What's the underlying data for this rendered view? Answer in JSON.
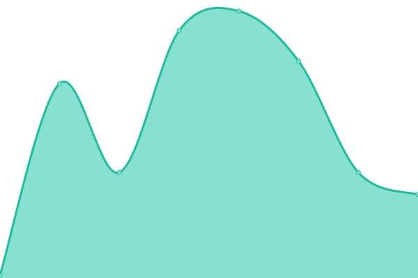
{
  "chart_data": {
    "type": "area",
    "x": [
      1,
      2,
      3,
      4,
      5,
      6,
      7,
      8
    ],
    "values": [
      1,
      70,
      38,
      89,
      96,
      78,
      38,
      30
    ],
    "ylim": [
      0,
      100
    ],
    "grid": false,
    "axes_visible": false,
    "legend": "none",
    "curve": "smooth",
    "colors": {
      "line": "#1abc9c",
      "fill": "#88e0d0",
      "point_fill": "#88e0d0"
    }
  }
}
